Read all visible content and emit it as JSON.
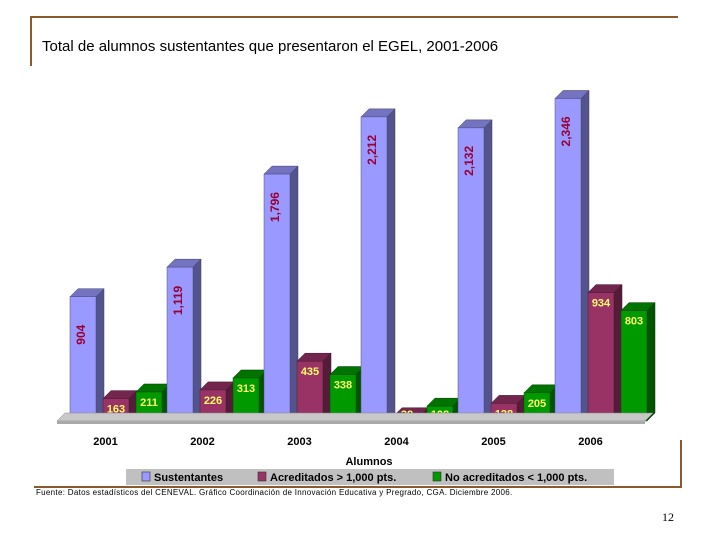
{
  "slide": {
    "title": "Total de alumnos sustentantes que presentaron el EGEL, 2001-2006",
    "source": "Fuente: Datos estadísticos del CENEVAL. Gráfico Coordinación de Innovación Educativa y Pregrado, CGA. Diciembre 2006.",
    "page_number": "12"
  },
  "chart_data": {
    "type": "bar",
    "title": "",
    "xlabel": "Alumnos",
    "ylabel": "",
    "categories": [
      "2001",
      "2002",
      "2003",
      "2004",
      "2005",
      "2006"
    ],
    "series": [
      {
        "name": "Sustentantes",
        "color": "#9999ff",
        "values": [
          904,
          1119,
          1796,
          2212,
          2132,
          2346
        ],
        "labels": [
          "904",
          "1,119",
          "1,796",
          "2,212",
          "2,132",
          "2,346"
        ]
      },
      {
        "name": "Acreditados > 1,000 pts.",
        "color": "#993366",
        "values": [
          163,
          226,
          435,
          38,
          128,
          934
        ],
        "labels": [
          "163",
          "226",
          "435",
          "38",
          "128",
          "934"
        ]
      },
      {
        "name": "No acreditados < 1,000 pts.",
        "color": "#009900",
        "values": [
          211,
          313,
          338,
          108,
          205,
          803
        ],
        "labels": [
          "211",
          "313",
          "338",
          "108",
          "205",
          "803"
        ]
      }
    ],
    "ylim": [
      0,
      2400
    ],
    "grid": false,
    "legend_position": "bottom"
  }
}
